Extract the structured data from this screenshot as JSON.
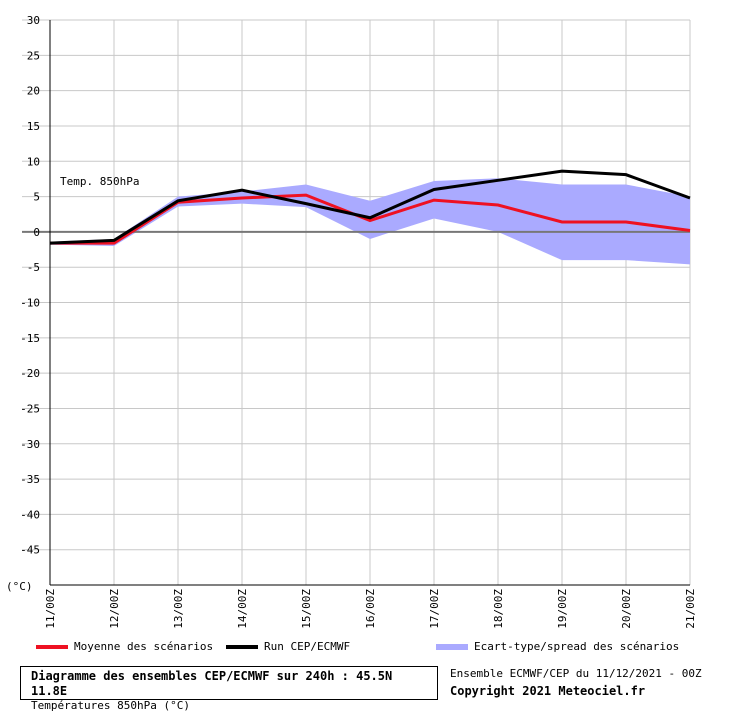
{
  "chart_data": {
    "type": "line",
    "annotation": "Temp. 850hPa",
    "y_unit_label": "(°C)",
    "ylim": [
      -50,
      30
    ],
    "y_ticks": [
      30,
      25,
      20,
      15,
      10,
      5,
      0,
      -5,
      -10,
      -15,
      -20,
      -25,
      -30,
      -35,
      -40,
      -45
    ],
    "grid": true,
    "categories": [
      "11/00Z",
      "12/00Z",
      "13/00Z",
      "14/00Z",
      "15/00Z",
      "16/00Z",
      "17/00Z",
      "18/00Z",
      "19/00Z",
      "20/00Z",
      "21/00Z"
    ],
    "series": [
      {
        "name": "Moyenne des scénarios",
        "color": "#ee1122",
        "values": [
          -1.6,
          -1.6,
          4.2,
          4.8,
          5.2,
          1.6,
          4.5,
          3.8,
          1.4,
          1.4,
          0.2
        ]
      },
      {
        "name": "Run CEP/ECMWF",
        "color": "#000000",
        "values": [
          -1.6,
          -1.2,
          4.4,
          5.9,
          4.0,
          2.0,
          6.0,
          7.3,
          8.6,
          8.1,
          4.8
        ]
      }
    ],
    "spread": {
      "name": "Ecart-type/spread des scénarios",
      "color": "#aaaaff",
      "upper": [
        -1.4,
        -1.0,
        5.0,
        5.7,
        6.7,
        4.4,
        7.2,
        7.6,
        6.7,
        6.7,
        5.0
      ],
      "lower": [
        -1.8,
        -2.0,
        3.6,
        4.0,
        3.5,
        -1.0,
        1.9,
        0.0,
        -4.0,
        -4.0,
        -4.6
      ]
    },
    "legend_position": "bottom"
  },
  "footer": {
    "title": "Diagramme des ensembles CEP/ECMWF sur 240h : 45.5N 11.8E",
    "subtitle": "Températures 850hPa (°C)",
    "run_info": "Ensemble ECMWF/CEP du 11/12/2021 - 00Z",
    "copyright": "Copyright 2021 Meteociel.fr"
  }
}
